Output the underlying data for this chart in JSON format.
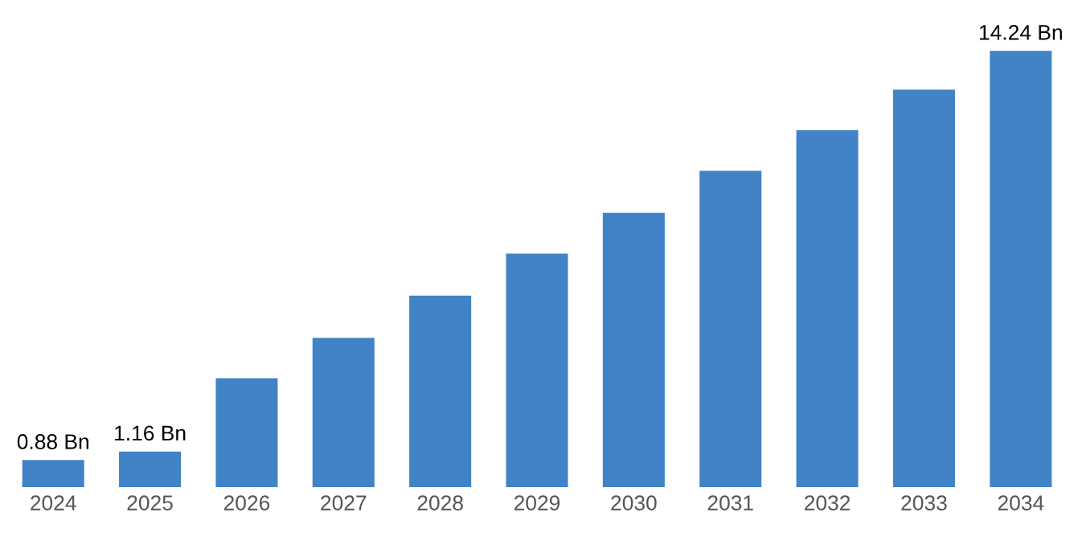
{
  "chart_data": {
    "type": "bar",
    "categories": [
      "2024",
      "2025",
      "2026",
      "2027",
      "2028",
      "2029",
      "2030",
      "2031",
      "2032",
      "2033",
      "2034"
    ],
    "values": [
      0.88,
      1.16,
      3.55,
      4.87,
      6.25,
      7.62,
      8.95,
      10.32,
      11.65,
      12.97,
      14.24
    ],
    "value_labels": [
      "0.88 Bn",
      "1.16 Bn",
      null,
      null,
      null,
      null,
      null,
      null,
      null,
      null,
      "14.24 Bn"
    ],
    "color": "#4183c6",
    "tick_labels": "x",
    "grid": false,
    "legend": false
  }
}
